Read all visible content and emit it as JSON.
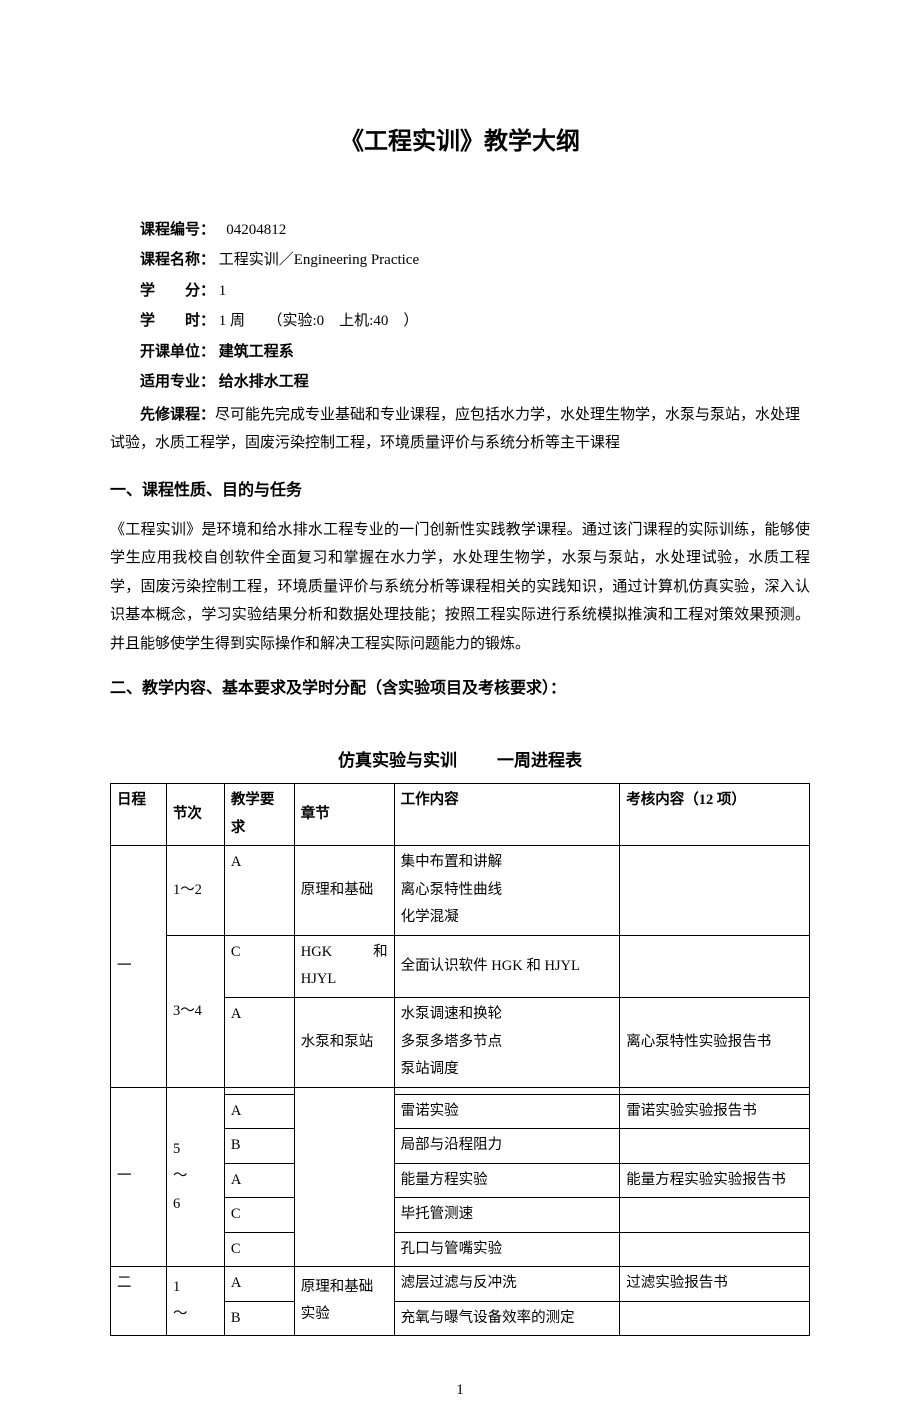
{
  "title": "《工程实训》教学大纲",
  "meta": {
    "code_label": "课程编号：",
    "code_value": "04204812",
    "name_label": "课程名称：",
    "name_value": "工程实训／Engineering Practice",
    "credit_label": "学　　分：",
    "credit_value": "1",
    "hours_label": "学　　时：",
    "hours_value": "1 周　　（实验:0　上机:40　）",
    "dept_label": "开课单位：",
    "dept_value": "建筑工程系",
    "major_label": "适用专业：",
    "major_value": "给水排水工程",
    "prereq_label": "先修课程：",
    "prereq_value": "尽可能先完成专业基础和专业课程，应包括水力学，水处理生物学，水泵与泵站，水处理试验，水质工程学，固废污染控制工程，环境质量评价与系统分析等主干课程"
  },
  "section1_heading": "一、课程性质、目的与任务",
  "section1_body": "《工程实训》是环境和给水排水工程专业的一门创新性实践教学课程。通过该门课程的实际训练，能够使学生应用我校自创软件全面复习和掌握在水力学，水处理生物学，水泵与泵站，水处理试验，水质工程学，固废污染控制工程，环境质量评价与系统分析等课程相关的实践知识，通过计算机仿真实验，深入认识基本概念，学习实验结果分析和数据处理技能；按照工程实际进行系统模拟推演和工程对策效果预测。并且能够使学生得到实际操作和解决工程实际问题能力的锻炼。",
  "section2_heading": "二、教学内容、基本要求及学时分配（含实验项目及考核要求）：",
  "table_title_left": "仿真实验与实训",
  "table_title_right": "一周进程表",
  "table": {
    "headers": [
      "日程",
      "节次",
      "教学要求",
      "章节",
      "工作内容",
      "考核内容（12 项）"
    ],
    "day1": {
      "label": "一",
      "s12": "1～2",
      "s12_req": "A",
      "s12_chapter": "原理和基础",
      "s12_work": "集中布置和讲解\n离心泵特性曲线\n化学混凝",
      "s12_assess": "",
      "s34": "3～4",
      "s34_r1_req": "C",
      "s34_r1_chapter": "HGK 和 HJYL",
      "s34_r1_work": "全面认识软件 HGK 和 HJYL",
      "s34_r1_assess": "",
      "s34_r2_req": "A",
      "s34_r2_chapter": "水泵和泵站",
      "s34_r2_work": "水泵调速和换轮\n多泵多塔多节点\n泵站调度",
      "s34_r2_assess": "离心泵特性实验报告书"
    },
    "mid_r0_req": "",
    "mid_r0_work": "",
    "mid_session": "5\n～\n6",
    "mid_date": "一",
    "mid_rows": [
      {
        "req": "A",
        "work": "雷诺实验",
        "assess": "雷诺实验实验报告书"
      },
      {
        "req": "B",
        "work": "局部与沿程阻力",
        "assess": ""
      },
      {
        "req": "A",
        "work": "能量方程实验",
        "assess": "能量方程实验实验报告书"
      },
      {
        "req": "C",
        "work": "毕托管测速",
        "assess": ""
      },
      {
        "req": "C",
        "work": "孔口与管嘴实验",
        "assess": ""
      }
    ],
    "day2": {
      "label": "二",
      "session": "1\n～",
      "r1_req": "A",
      "r1_chapter": "原理和基础实验",
      "r1_work": "滤层过滤与反冲洗",
      "r1_assess": "过滤实验报告书",
      "r2_req": "B",
      "r2_work": "充氧与曝气设备效率的测定",
      "r2_assess": ""
    }
  },
  "page_number": "1"
}
